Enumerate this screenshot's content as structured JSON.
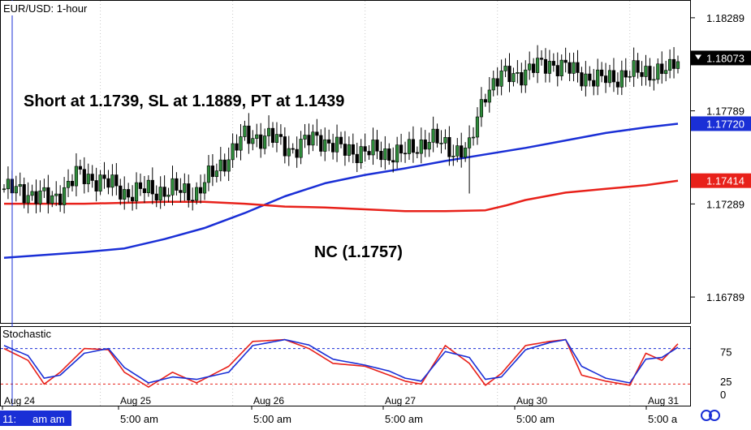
{
  "chart_data": [
    {
      "type": "candlestick",
      "title": "EUR/USD: 1-hour",
      "annotations": [
        "Short at 1.1739, SL at 1.1889, PT at 1.1439",
        "NC (1.1757)"
      ],
      "ylim": [
        1.1665,
        1.1838
      ],
      "y_ticks": [
        "1.18289",
        "1.17789",
        "1.17289",
        "1.16789"
      ],
      "price_tags": [
        {
          "label": "1.18073",
          "value": 1.18073,
          "color": "#000000",
          "text_color": "#ffffff"
        },
        {
          "label": "1.17720",
          "value": 1.1772,
          "color": "#1a2fd6",
          "text_color": "#ffffff"
        },
        {
          "label": "1.17414",
          "value": 1.17414,
          "color": "#e8211a",
          "text_color": "#ffffff"
        }
      ],
      "x_date_labels": [
        "Aug 24",
        "Aug 25",
        "Aug 26",
        "Aug 27",
        "Aug 30",
        "Aug 31"
      ],
      "x_time_labels": [
        "11:",
        "am am",
        "5:00 am",
        "5:00 am",
        "5:00 am",
        "5:00 am",
        "5:00 a"
      ],
      "series": [
        {
          "type": "line",
          "color": "#1a2fd6",
          "x": [
            0,
            10,
            20,
            30,
            40,
            50,
            60,
            70,
            80,
            90,
            100,
            110,
            120,
            130,
            140,
            150,
            160,
            168
          ],
          "values": [
            1.17,
            1.17015,
            1.1703,
            1.1705,
            1.171,
            1.1716,
            1.1724,
            1.1733,
            1.174,
            1.17445,
            1.1748,
            1.1752,
            1.17555,
            1.1759,
            1.1763,
            1.1767,
            1.177,
            1.1772
          ]
        },
        {
          "type": "line",
          "color": "#e8211a",
          "x": [
            0,
            10,
            20,
            30,
            40,
            50,
            60,
            70,
            80,
            90,
            100,
            110,
            120,
            125,
            130,
            140,
            150,
            160,
            168
          ],
          "values": [
            1.1729,
            1.1729,
            1.1729,
            1.17295,
            1.173,
            1.173,
            1.1729,
            1.17275,
            1.1727,
            1.1726,
            1.1725,
            1.1725,
            1.17255,
            1.1728,
            1.1731,
            1.1735,
            1.1737,
            1.1739,
            1.17414
          ]
        }
      ],
      "candle_anchors": {
        "x": [
          0,
          6,
          12,
          18,
          24,
          30,
          36,
          42,
          48,
          54,
          60,
          66,
          72,
          78,
          84,
          90,
          96,
          100,
          106,
          112,
          116,
          118,
          120,
          124,
          130,
          136,
          142,
          148,
          154,
          160,
          166,
          168
        ],
        "values": [
          1.1737,
          1.1735,
          1.1731,
          1.1744,
          1.1742,
          1.1735,
          1.1736,
          1.1736,
          1.1735,
          1.175,
          1.1765,
          1.1765,
          1.1758,
          1.1765,
          1.1758,
          1.1757,
          1.1756,
          1.1756,
          1.1764,
          1.1758,
          1.1758,
          1.1775,
          1.179,
          1.1797,
          1.18,
          1.1805,
          1.18,
          1.1795,
          1.1798,
          1.18,
          1.18,
          1.1808
        ]
      }
    },
    {
      "type": "line",
      "title": "Stochastic",
      "ylim": [
        0,
        100
      ],
      "y_ticks": [
        "75",
        "25",
        "0"
      ],
      "levels": [
        80,
        20
      ],
      "series": [
        {
          "name": "%K",
          "color": "#e8211a",
          "x": [
            0,
            6,
            10,
            14,
            20,
            26,
            30,
            36,
            42,
            48,
            56,
            62,
            70,
            76,
            82,
            90,
            96,
            100,
            104,
            110,
            116,
            120,
            124,
            130,
            136,
            140,
            144,
            150,
            156,
            160,
            164,
            168
          ],
          "values": [
            80,
            60,
            20,
            40,
            80,
            78,
            40,
            15,
            40,
            22,
            50,
            92,
            95,
            80,
            55,
            50,
            35,
            25,
            20,
            85,
            55,
            18,
            38,
            85,
            92,
            95,
            35,
            25,
            18,
            72,
            60,
            88
          ]
        },
        {
          "name": "%D",
          "color": "#1a2fd6",
          "x": [
            0,
            6,
            10,
            14,
            20,
            26,
            30,
            36,
            42,
            48,
            56,
            62,
            70,
            76,
            82,
            90,
            96,
            100,
            104,
            110,
            116,
            120,
            124,
            130,
            136,
            140,
            144,
            150,
            156,
            160,
            164,
            168
          ],
          "values": [
            85,
            68,
            30,
            35,
            72,
            80,
            48,
            22,
            32,
            28,
            40,
            85,
            95,
            86,
            62,
            52,
            42,
            30,
            25,
            75,
            65,
            28,
            32,
            78,
            90,
            95,
            50,
            30,
            22,
            62,
            65,
            82
          ]
        }
      ]
    }
  ]
}
